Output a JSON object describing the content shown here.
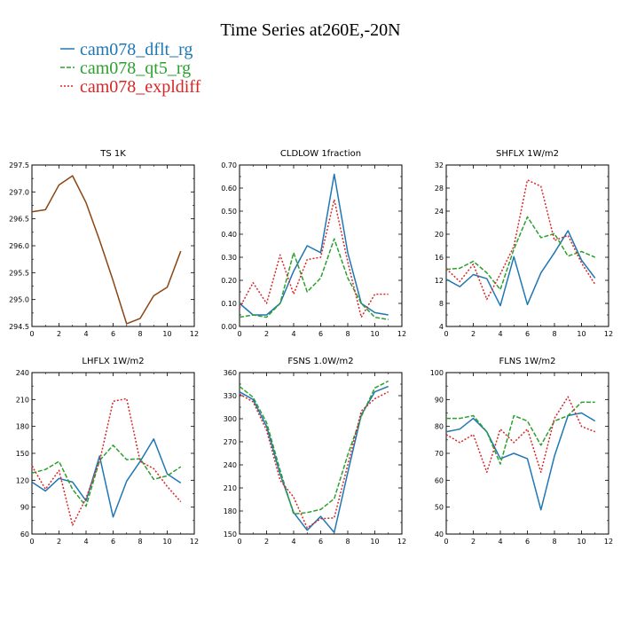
{
  "figure": {
    "title": "Time Series at260E,-20N"
  },
  "legend": [
    {
      "name": "cam078_dflt_rg",
      "color": "#1f77b4",
      "dash": "solid"
    },
    {
      "name": "cam078_qt5_rg",
      "color": "#2ca02c",
      "dash": "dashed"
    },
    {
      "name": "cam078_expldiff",
      "color": "#d62728",
      "dash": "dotted"
    }
  ],
  "chart_data": [
    {
      "type": "line",
      "title": "TS   1K",
      "xlim": [
        0,
        12
      ],
      "ylim": [
        294.5,
        297.5
      ],
      "xticks": [
        0,
        2,
        4,
        6,
        8,
        10,
        12
      ],
      "yticks": [
        294.5,
        295.0,
        295.5,
        296.0,
        296.5,
        297.0,
        297.5
      ],
      "ytick_labels": [
        "294.5",
        "295.0",
        "295.5",
        "296.0",
        "296.5",
        "297.0",
        "297.5"
      ],
      "x": [
        0,
        1,
        2,
        3,
        4,
        5,
        6,
        7,
        8,
        9,
        10,
        11
      ],
      "series": [
        {
          "values": [
            296.63,
            296.67,
            297.13,
            297.3,
            296.8,
            296.1,
            295.35,
            294.55,
            294.65,
            295.07,
            295.23,
            295.9
          ],
          "color": "#8B4513",
          "dash": "solid"
        }
      ]
    },
    {
      "type": "line",
      "title": "CLDLOW   1fraction",
      "xlim": [
        0,
        12
      ],
      "ylim": [
        0,
        0.7
      ],
      "xticks": [
        0,
        2,
        4,
        6,
        8,
        10,
        12
      ],
      "yticks": [
        0,
        0.1,
        0.2,
        0.3,
        0.4,
        0.5,
        0.6,
        0.7
      ],
      "ytick_labels": [
        "0.00",
        "0.10",
        "0.20",
        "0.30",
        "0.40",
        "0.50",
        "0.60",
        "0.70"
      ],
      "x": [
        0,
        1,
        2,
        3,
        4,
        5,
        6,
        7,
        8,
        9,
        10,
        11
      ],
      "series": [
        {
          "values": [
            0.1,
            0.05,
            0.05,
            0.1,
            0.24,
            0.35,
            0.32,
            0.66,
            0.32,
            0.1,
            0.06,
            0.05
          ],
          "color": "#1f77b4",
          "dash": "solid"
        },
        {
          "values": [
            0.04,
            0.05,
            0.04,
            0.1,
            0.32,
            0.15,
            0.21,
            0.38,
            0.21,
            0.1,
            0.04,
            0.03
          ],
          "color": "#2ca02c",
          "dash": "dashed"
        },
        {
          "values": [
            0.08,
            0.19,
            0.1,
            0.31,
            0.14,
            0.29,
            0.3,
            0.55,
            0.28,
            0.04,
            0.14,
            0.14
          ],
          "color": "#d62728",
          "dash": "dotted"
        }
      ]
    },
    {
      "type": "line",
      "title": "SHFLX   1W/m2",
      "xlim": [
        0,
        12
      ],
      "ylim": [
        4,
        32
      ],
      "xticks": [
        0,
        2,
        4,
        6,
        8,
        10,
        12
      ],
      "yticks": [
        4,
        8,
        12,
        16,
        20,
        24,
        28,
        32
      ],
      "ytick_labels": [
        "4",
        "8",
        "12",
        "16",
        "20",
        "24",
        "28",
        "32"
      ],
      "x": [
        0,
        1,
        2,
        3,
        4,
        5,
        6,
        7,
        8,
        9,
        10,
        11
      ],
      "series": [
        {
          "values": [
            12.2,
            10.9,
            13.0,
            12.3,
            7.6,
            16.1,
            7.8,
            13.3,
            16.8,
            20.6,
            15.5,
            12.4
          ],
          "color": "#1f77b4",
          "dash": "solid"
        },
        {
          "values": [
            13.9,
            14.1,
            15.3,
            13.3,
            10.4,
            17.4,
            23.0,
            19.4,
            20.1,
            16.2,
            17.0,
            16.0
          ],
          "color": "#2ca02c",
          "dash": "dashed"
        },
        {
          "values": [
            14.0,
            11.8,
            14.8,
            8.7,
            13.1,
            17.9,
            29.4,
            28.3,
            18.9,
            19.8,
            15.0,
            11.3
          ],
          "color": "#d62728",
          "dash": "dotted"
        }
      ]
    },
    {
      "type": "line",
      "title": "LHFLX   1W/m2",
      "xlim": [
        0,
        12
      ],
      "ylim": [
        60,
        240
      ],
      "xticks": [
        0,
        2,
        4,
        6,
        8,
        10,
        12
      ],
      "yticks": [
        60,
        90,
        120,
        150,
        180,
        210,
        240
      ],
      "ytick_labels": [
        "60",
        "90",
        "120",
        "150",
        "180",
        "210",
        "240"
      ],
      "x": [
        0,
        1,
        2,
        3,
        4,
        5,
        6,
        7,
        8,
        9,
        10,
        11
      ],
      "series": [
        {
          "values": [
            118,
            108,
            122,
            118,
            97,
            147,
            79,
            119,
            141,
            166,
            127,
            117
          ],
          "color": "#1f77b4",
          "dash": "solid"
        },
        {
          "values": [
            128,
            132,
            141,
            110,
            91,
            142,
            159,
            143,
            144,
            121,
            125,
            135
          ],
          "color": "#2ca02c",
          "dash": "dashed"
        },
        {
          "values": [
            136,
            110,
            131,
            70,
            100,
            141,
            208,
            211,
            141,
            133,
            113,
            96
          ],
          "color": "#d62728",
          "dash": "dotted"
        }
      ]
    },
    {
      "type": "line",
      "title": "FSNS   1.0W/m2",
      "xlim": [
        0,
        12
      ],
      "ylim": [
        150,
        360
      ],
      "xticks": [
        0,
        2,
        4,
        6,
        8,
        10,
        12
      ],
      "yticks": [
        150,
        180,
        210,
        240,
        270,
        300,
        330,
        360
      ],
      "ytick_labels": [
        "150",
        "180",
        "210",
        "240",
        "270",
        "300",
        "330",
        "360"
      ],
      "x": [
        0,
        1,
        2,
        3,
        4,
        5,
        6,
        7,
        8,
        9,
        10,
        11
      ],
      "series": [
        {
          "values": [
            335,
            325,
            290,
            228,
            178,
            155,
            173,
            152,
            230,
            305,
            335,
            342
          ],
          "color": "#1f77b4",
          "dash": "solid"
        },
        {
          "values": [
            342,
            328,
            295,
            233,
            176,
            178,
            182,
            196,
            253,
            303,
            340,
            349
          ],
          "color": "#2ca02c",
          "dash": "dashed"
        },
        {
          "values": [
            332,
            322,
            285,
            220,
            198,
            158,
            170,
            171,
            240,
            310,
            326,
            335
          ],
          "color": "#d62728",
          "dash": "dotted"
        }
      ]
    },
    {
      "type": "line",
      "title": "FLNS   1W/m2",
      "xlim": [
        0,
        12
      ],
      "ylim": [
        40,
        100
      ],
      "xticks": [
        0,
        2,
        4,
        6,
        8,
        10,
        12
      ],
      "yticks": [
        40,
        50,
        60,
        70,
        80,
        90,
        100
      ],
      "ytick_labels": [
        "40",
        "50",
        "60",
        "70",
        "80",
        "90",
        "100"
      ],
      "x": [
        0,
        1,
        2,
        3,
        4,
        5,
        6,
        7,
        8,
        9,
        10,
        11
      ],
      "series": [
        {
          "values": [
            78,
            79,
            83,
            78,
            68,
            70,
            68,
            49,
            69,
            84,
            85,
            82
          ],
          "color": "#1f77b4",
          "dash": "solid"
        },
        {
          "values": [
            83,
            83,
            84,
            78,
            66,
            84,
            82,
            73,
            82,
            84,
            89,
            89
          ],
          "color": "#2ca02c",
          "dash": "dashed"
        },
        {
          "values": [
            77,
            74,
            77,
            63,
            79,
            74,
            79,
            63,
            83,
            91,
            80,
            78
          ],
          "color": "#d62728",
          "dash": "dotted"
        }
      ]
    }
  ]
}
